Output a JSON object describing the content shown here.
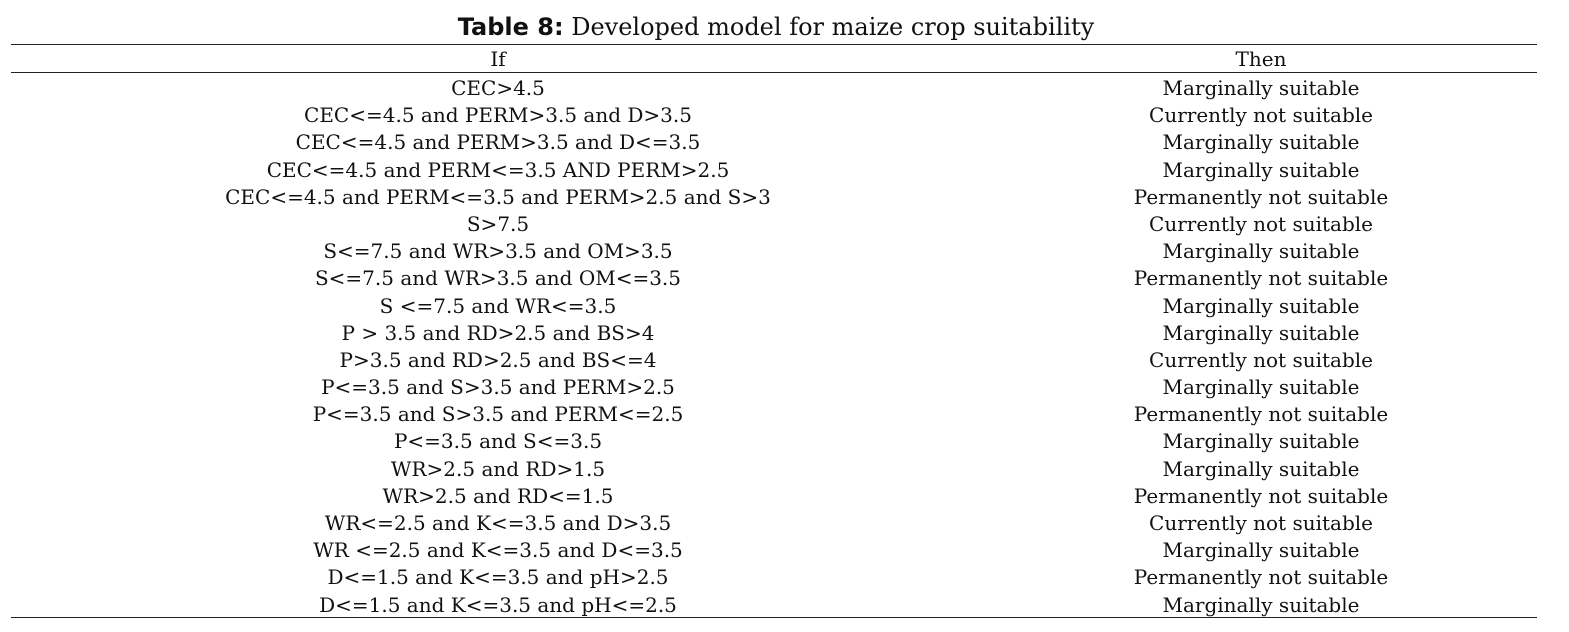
{
  "caption": {
    "label": "Table 8:",
    "text": " Developed model for maize crop suitability"
  },
  "headers": {
    "if": "If",
    "then": "Then"
  },
  "rows": [
    {
      "if": "CEC>4.5",
      "then": "Marginally suitable"
    },
    {
      "if": "CEC<=4.5 and PERM>3.5 and D>3.5",
      "then": "Currently not suitable"
    },
    {
      "if": "CEC<=4.5 and PERM>3.5 and D<=3.5",
      "then": "Marginally suitable"
    },
    {
      "if": "CEC<=4.5 and PERM<=3.5 AND PERM>2.5",
      "then": "Marginally suitable"
    },
    {
      "if": "CEC<=4.5 and PERM<=3.5 and PERM>2.5 and S>3",
      "then": "Permanently not suitable"
    },
    {
      "if": "S>7.5",
      "then": "Currently not suitable"
    },
    {
      "if": "S<=7.5 and WR>3.5 and OM>3.5",
      "then": "Marginally suitable"
    },
    {
      "if": "S<=7.5 and WR>3.5 and OM<=3.5",
      "then": "Permanently not suitable"
    },
    {
      "if": "S <=7.5 and WR<=3.5",
      "then": "Marginally suitable"
    },
    {
      "if": "P > 3.5 and RD>2.5 and BS>4",
      "then": "Marginally suitable"
    },
    {
      "if": "P>3.5 and RD>2.5 and BS<=4",
      "then": "Currently not suitable"
    },
    {
      "if": "P<=3.5 and S>3.5 and PERM>2.5",
      "then": "Marginally suitable"
    },
    {
      "if": "P<=3.5 and S>3.5 and PERM<=2.5",
      "then": "Permanently not suitable"
    },
    {
      "if": "P<=3.5 and S<=3.5",
      "then": "Marginally suitable"
    },
    {
      "if": "WR>2.5 and RD>1.5",
      "then": "Marginally suitable"
    },
    {
      "if": "WR>2.5 and RD<=1.5",
      "then": "Permanently not suitable"
    },
    {
      "if": "WR<=2.5 and K<=3.5 and D>3.5",
      "then": "Currently not suitable"
    },
    {
      "if": "WR <=2.5 and K<=3.5 and D<=3.5",
      "then": "Marginally suitable"
    },
    {
      "if": "D<=1.5 and K<=3.5 and pH>2.5",
      "then": "Permanently not suitable"
    },
    {
      "if": "D<=1.5 and K<=3.5 and pH<=2.5",
      "then": "Marginally suitable"
    }
  ]
}
